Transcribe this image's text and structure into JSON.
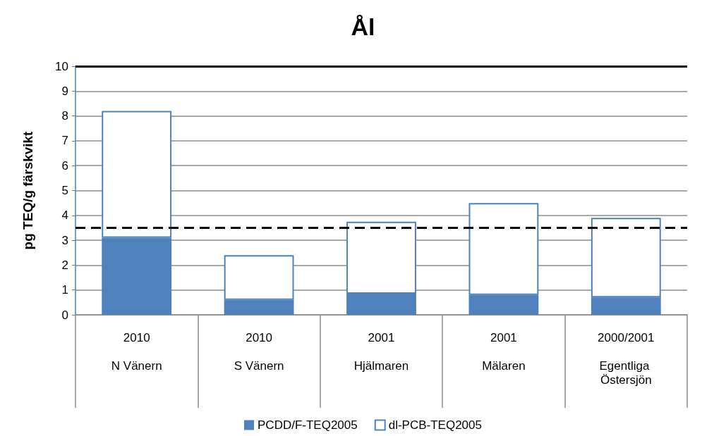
{
  "chart_data": {
    "type": "bar",
    "title": "Ål",
    "ylabel": "pg TEQ/g färskvikt",
    "categories": [
      "2010\nN Vänern",
      "2010\nS Vänern",
      "2001\nHjälmaren",
      "2001\nMälaren",
      "2000/2001\nEgentliga Östersjön"
    ],
    "series": [
      {
        "name": "PCDD/F-TEQ2005",
        "color": "#4f81bd",
        "values": [
          3.1,
          0.6,
          0.85,
          0.8,
          0.7
        ]
      },
      {
        "name": "dl-PCB-TEQ2005",
        "color": "#ffffff",
        "values": [
          5.1,
          1.8,
          2.9,
          3.7,
          3.2
        ]
      }
    ],
    "stacked": true,
    "ylim": [
      0,
      10
    ],
    "yticks": [
      0,
      1,
      2,
      3,
      4,
      5,
      6,
      7,
      8,
      9,
      10
    ],
    "grid": "y",
    "legend": "bottom",
    "ref_lines": [
      {
        "axis": "y",
        "value": 10,
        "color": "#000000",
        "line_style": "solid"
      },
      {
        "axis": "y",
        "value": 3.5,
        "color": "#000000",
        "line_style": "dashed"
      }
    ]
  }
}
